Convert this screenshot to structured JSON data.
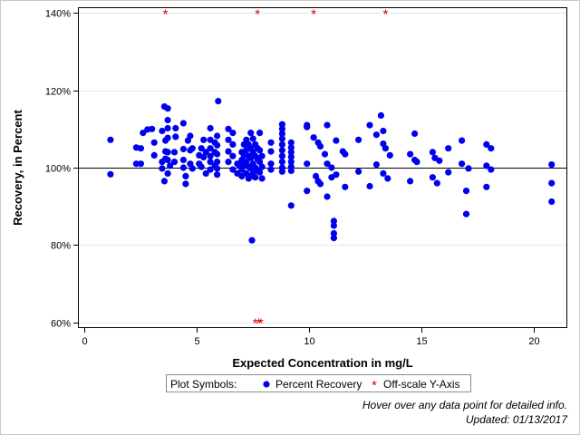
{
  "chart_data": {
    "type": "scatter",
    "xlabel": "Expected Concentration in mg/L",
    "ylabel": "Recovery, in Percent",
    "xlim": [
      -0.3,
      21.5
    ],
    "ylim": [
      58.5,
      141.5
    ],
    "x_ticks": [
      0,
      5,
      10,
      15,
      20
    ],
    "x_tick_labels": [
      "0",
      "5",
      "10",
      "15",
      "20"
    ],
    "y_ticks": [
      60,
      80,
      100,
      120,
      140
    ],
    "y_tick_labels": [
      "60%",
      "80%",
      "100%",
      "120%",
      "140%"
    ],
    "grid": "horizontal",
    "reference_line_y": 100,
    "legend_position": "bottom",
    "colors": {
      "points": "#0000ee",
      "offscale": "#dd0000",
      "grid": "#e6e6e6",
      "reference": "#000000"
    },
    "legend": {
      "title": "Plot Symbols:",
      "items": [
        {
          "label": "Percent Recovery",
          "marker": "dot-icon",
          "color": "#0000ee"
        },
        {
          "label": "Off-scale Y-Axis",
          "marker": "asterisk-icon",
          "color": "#dd0000"
        }
      ]
    },
    "footnotes": [
      "Hover over any data point for detailed info.",
      "Updated: 01/13/2017"
    ],
    "series": [
      {
        "name": "Percent Recovery",
        "marker": "circle",
        "points": [
          [
            1.15,
            107.2
          ],
          [
            1.15,
            98.3
          ],
          [
            2.3,
            105.2
          ],
          [
            2.3,
            101.0
          ],
          [
            2.5,
            105.0
          ],
          [
            2.5,
            101.0
          ],
          [
            2.6,
            109.0
          ],
          [
            2.8,
            109.9
          ],
          [
            3.0,
            110.0
          ],
          [
            3.1,
            106.5
          ],
          [
            3.1,
            103.2
          ],
          [
            3.45,
            109.5
          ],
          [
            3.45,
            101.5
          ],
          [
            3.45,
            99.8
          ],
          [
            3.55,
            115.8
          ],
          [
            3.55,
            96.5
          ],
          [
            3.6,
            107.0
          ],
          [
            3.6,
            104.2
          ],
          [
            3.6,
            102.3
          ],
          [
            3.7,
            115.3
          ],
          [
            3.7,
            112.3
          ],
          [
            3.7,
            110.2
          ],
          [
            3.7,
            107.7
          ],
          [
            3.7,
            104.0
          ],
          [
            3.7,
            102.0
          ],
          [
            3.7,
            98.5
          ],
          [
            3.8,
            100.5
          ],
          [
            4.0,
            104.0
          ],
          [
            4.0,
            101.5
          ],
          [
            4.05,
            110.2
          ],
          [
            4.05,
            108.0
          ],
          [
            4.4,
            111.5
          ],
          [
            4.4,
            104.8
          ],
          [
            4.4,
            102.0
          ],
          [
            4.4,
            100.0
          ],
          [
            4.5,
            97.8
          ],
          [
            4.5,
            95.8
          ],
          [
            4.6,
            107.0
          ],
          [
            4.7,
            108.2
          ],
          [
            4.7,
            104.5
          ],
          [
            4.7,
            101.0
          ],
          [
            4.8,
            105.0
          ],
          [
            4.8,
            99.8
          ],
          [
            5.1,
            103.2
          ],
          [
            5.1,
            101.0
          ],
          [
            5.2,
            100.2
          ],
          [
            5.2,
            105.0
          ],
          [
            5.3,
            107.2
          ],
          [
            5.3,
            102.7
          ],
          [
            5.4,
            98.5
          ],
          [
            5.4,
            104.0
          ],
          [
            5.6,
            110.2
          ],
          [
            5.6,
            107.2
          ],
          [
            5.6,
            105.0
          ],
          [
            5.6,
            103.0
          ],
          [
            5.6,
            101.5
          ],
          [
            5.6,
            99.5
          ],
          [
            5.8,
            106.5
          ],
          [
            5.8,
            104.0
          ],
          [
            5.8,
            100.5
          ],
          [
            5.9,
            108.2
          ],
          [
            5.9,
            105.8
          ],
          [
            5.9,
            103.5
          ],
          [
            5.9,
            101.5
          ],
          [
            5.9,
            99.8
          ],
          [
            5.9,
            98.2
          ],
          [
            5.95,
            117.2
          ],
          [
            6.4,
            110.0
          ],
          [
            6.4,
            107.2
          ],
          [
            6.4,
            104.2
          ],
          [
            6.4,
            101.5
          ],
          [
            6.6,
            109.0
          ],
          [
            6.6,
            106.0
          ],
          [
            6.6,
            103.0
          ],
          [
            6.6,
            99.5
          ],
          [
            6.8,
            101.0
          ],
          [
            6.8,
            98.5
          ],
          [
            6.9,
            100.5
          ],
          [
            7.0,
            104.0
          ],
          [
            7.0,
            102.0
          ],
          [
            7.0,
            99.5
          ],
          [
            7.0,
            97.8
          ],
          [
            7.1,
            106.0
          ],
          [
            7.1,
            103.2
          ],
          [
            7.1,
            100.5
          ],
          [
            7.2,
            107.2
          ],
          [
            7.2,
            104.5
          ],
          [
            7.2,
            101.5
          ],
          [
            7.2,
            98.5
          ],
          [
            7.3,
            106.0
          ],
          [
            7.3,
            103.0
          ],
          [
            7.3,
            100.2
          ],
          [
            7.3,
            97.2
          ],
          [
            7.4,
            109.0
          ],
          [
            7.4,
            105.0
          ],
          [
            7.4,
            102.5
          ],
          [
            7.4,
            99.8
          ],
          [
            7.4,
            97.8
          ],
          [
            7.45,
            81.2
          ],
          [
            7.5,
            107.5
          ],
          [
            7.5,
            104.0
          ],
          [
            7.5,
            101.0
          ],
          [
            7.5,
            98.5
          ],
          [
            7.6,
            106.0
          ],
          [
            7.6,
            103.0
          ],
          [
            7.6,
            100.0
          ],
          [
            7.6,
            97.5
          ],
          [
            7.7,
            105.0
          ],
          [
            7.7,
            102.2
          ],
          [
            7.7,
            99.2
          ],
          [
            7.8,
            109.0
          ],
          [
            7.8,
            104.5
          ],
          [
            7.8,
            101.5
          ],
          [
            7.8,
            98.8
          ],
          [
            7.9,
            103.0
          ],
          [
            7.9,
            100.2
          ],
          [
            7.9,
            97.2
          ],
          [
            8.3,
            106.5
          ],
          [
            8.3,
            104.2
          ],
          [
            8.3,
            101.0
          ],
          [
            8.3,
            99.5
          ],
          [
            8.8,
            111.2
          ],
          [
            8.8,
            110.0
          ],
          [
            8.8,
            108.8
          ],
          [
            8.8,
            107.5
          ],
          [
            8.8,
            106.0
          ],
          [
            8.8,
            104.5
          ],
          [
            8.8,
            103.0
          ],
          [
            8.8,
            101.5
          ],
          [
            8.8,
            100.0
          ],
          [
            8.8,
            99.0
          ],
          [
            9.2,
            106.5
          ],
          [
            9.2,
            105.2
          ],
          [
            9.2,
            104.0
          ],
          [
            9.2,
            102.8
          ],
          [
            9.2,
            101.5
          ],
          [
            9.2,
            100.2
          ],
          [
            9.2,
            99.2
          ],
          [
            9.2,
            90.2
          ],
          [
            9.9,
            111.0
          ],
          [
            9.9,
            110.5
          ],
          [
            9.9,
            101.0
          ],
          [
            9.9,
            94.0
          ],
          [
            10.2,
            107.8
          ],
          [
            10.3,
            97.8
          ],
          [
            10.4,
            106.5
          ],
          [
            10.4,
            96.5
          ],
          [
            10.5,
            105.5
          ],
          [
            10.5,
            95.8
          ],
          [
            10.7,
            103.5
          ],
          [
            10.8,
            111.0
          ],
          [
            10.8,
            101.0
          ],
          [
            10.8,
            92.5
          ],
          [
            11.0,
            100.0
          ],
          [
            11.0,
            97.5
          ],
          [
            11.1,
            86.2
          ],
          [
            11.1,
            85.0
          ],
          [
            11.1,
            83.0
          ],
          [
            11.1,
            81.8
          ],
          [
            11.2,
            107.0
          ],
          [
            11.2,
            98.2
          ],
          [
            11.5,
            104.2
          ],
          [
            11.6,
            103.5
          ],
          [
            11.6,
            95.0
          ],
          [
            12.2,
            107.2
          ],
          [
            12.2,
            99.0
          ],
          [
            12.7,
            111.0
          ],
          [
            12.7,
            95.2
          ],
          [
            13.0,
            108.5
          ],
          [
            13.0,
            100.8
          ],
          [
            13.2,
            113.5
          ],
          [
            13.3,
            109.5
          ],
          [
            13.3,
            106.2
          ],
          [
            13.3,
            98.5
          ],
          [
            13.4,
            105.0
          ],
          [
            13.5,
            97.2
          ],
          [
            13.6,
            103.2
          ],
          [
            14.5,
            103.5
          ],
          [
            14.5,
            96.5
          ],
          [
            14.7,
            108.8
          ],
          [
            14.7,
            102.0
          ],
          [
            14.8,
            101.5
          ],
          [
            15.5,
            104.0
          ],
          [
            15.5,
            97.5
          ],
          [
            15.6,
            102.5
          ],
          [
            15.7,
            96.0
          ],
          [
            15.8,
            101.8
          ],
          [
            16.2,
            105.0
          ],
          [
            16.2,
            98.8
          ],
          [
            16.8,
            107.0
          ],
          [
            16.8,
            101.0
          ],
          [
            17.0,
            94.0
          ],
          [
            17.0,
            88.0
          ],
          [
            17.1,
            99.8
          ],
          [
            17.9,
            106.0
          ],
          [
            17.9,
            100.5
          ],
          [
            17.9,
            95.0
          ],
          [
            18.1,
            105.0
          ],
          [
            18.1,
            99.5
          ],
          [
            20.8,
            100.8
          ],
          [
            20.8,
            96.0
          ],
          [
            20.8,
            91.2
          ]
        ]
      },
      {
        "name": "Off-scale Y-Axis",
        "marker": "asterisk",
        "points": [
          [
            3.6,
            140
          ],
          [
            7.7,
            140
          ],
          [
            10.2,
            140
          ],
          [
            13.4,
            140
          ],
          [
            7.6,
            60
          ],
          [
            7.75,
            60
          ],
          [
            7.85,
            60
          ]
        ]
      }
    ]
  }
}
